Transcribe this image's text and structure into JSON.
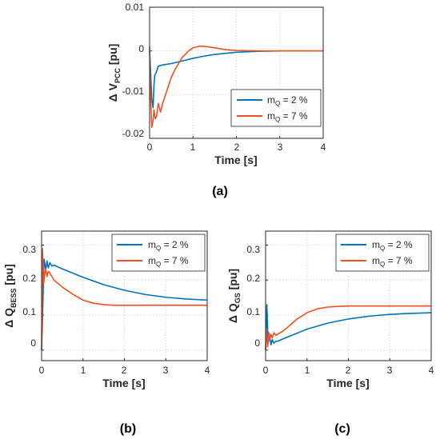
{
  "colors": {
    "blue": "#0072BD",
    "orange": "#F25022"
  },
  "charts": [
    {
      "caption": "(a)",
      "ylabel_main": "Δ V",
      "ylabel_sub": "PCC",
      "ylabel_unit": " [pu]",
      "xlabel": "Time [s]",
      "xticks": [
        "0",
        "1",
        "2",
        "3",
        "4"
      ],
      "yticks": [
        "0.01",
        "0",
        "-0.01",
        "-0.02"
      ],
      "legend": [
        {
          "prefix": "m",
          "sub": "Q",
          "suffix": " = 2 %"
        },
        {
          "prefix": "m",
          "sub": "Q",
          "suffix": " = 7 %"
        }
      ]
    },
    {
      "caption": "(b)",
      "ylabel_main": "Δ Q",
      "ylabel_sub": "BESS",
      "ylabel_unit": " [pu]",
      "xlabel": "Time [s]",
      "xticks": [
        "0",
        "1",
        "2",
        "3",
        "4"
      ],
      "yticks": [
        "0.3",
        "0.2",
        "0.1",
        "0"
      ],
      "legend": [
        {
          "prefix": "m",
          "sub": "Q",
          "suffix": " = 2 %"
        },
        {
          "prefix": "m",
          "sub": "Q",
          "suffix": " = 7 %"
        }
      ]
    },
    {
      "caption": "(c)",
      "ylabel_main": "Δ Q",
      "ylabel_sub": "GS",
      "ylabel_unit": " [pu]",
      "xlabel": "Time [s]",
      "xticks": [
        "0",
        "1",
        "2",
        "3",
        "4"
      ],
      "yticks": [
        "0.3",
        "0.2",
        "0.1",
        "0"
      ],
      "legend": [
        {
          "prefix": "m",
          "sub": "Q",
          "suffix": " = 2 %"
        },
        {
          "prefix": "m",
          "sub": "Q",
          "suffix": " = 7 %"
        }
      ]
    }
  ],
  "chart_data": [
    {
      "type": "line",
      "title": "(a)",
      "xlabel": "Time [s]",
      "ylabel": "Δ V_PCC [pu]",
      "xlim": [
        0,
        4
      ],
      "ylim": [
        -0.02,
        0.01
      ],
      "grid": true,
      "legend_position": "bottom-right",
      "series": [
        {
          "name": "m_Q = 2 %",
          "color": "#0072BD",
          "x": [
            0,
            0.02,
            0.05,
            0.08,
            0.1,
            0.12,
            0.15,
            0.2,
            0.3,
            0.5,
            0.75,
            1.0,
            1.25,
            1.5,
            2.0,
            2.5,
            3.0,
            4.0
          ],
          "y": [
            0,
            -0.004,
            -0.011,
            -0.013,
            -0.008,
            -0.0055,
            -0.005,
            -0.0035,
            -0.0032,
            -0.0029,
            -0.0023,
            -0.0017,
            -0.0012,
            -0.0008,
            -0.0003,
            -0.0001,
            0,
            0
          ]
        },
        {
          "name": "m_Q = 7 %",
          "color": "#F25022",
          "x": [
            0,
            0.02,
            0.05,
            0.08,
            0.1,
            0.13,
            0.16,
            0.2,
            0.25,
            0.3,
            0.4,
            0.5,
            0.6,
            0.75,
            0.9,
            1.0,
            1.15,
            1.3,
            1.5,
            1.75,
            2.0,
            2.5,
            3.0,
            4.0
          ],
          "y": [
            0.001,
            -0.01,
            -0.0175,
            -0.016,
            -0.0135,
            -0.0155,
            -0.015,
            -0.012,
            -0.014,
            -0.012,
            -0.009,
            -0.006,
            -0.004,
            -0.0015,
            0.0,
            0.0007,
            0.0011,
            0.001,
            0.0007,
            0.0003,
            0.0001,
            0,
            0,
            0
          ]
        }
      ]
    },
    {
      "type": "line",
      "title": "(b)",
      "xlabel": "Time [s]",
      "ylabel": "Δ Q_BESS [pu]",
      "xlim": [
        0,
        4
      ],
      "ylim": [
        -0.03,
        0.34
      ],
      "grid": true,
      "legend_position": "top-right",
      "series": [
        {
          "name": "m_Q = 2 %",
          "color": "#0072BD",
          "x": [
            0,
            0.03,
            0.06,
            0.1,
            0.13,
            0.16,
            0.2,
            0.25,
            0.3,
            0.5,
            0.75,
            1.0,
            1.5,
            2.0,
            2.5,
            3.0,
            3.5,
            4.0
          ],
          "y": [
            0,
            0.13,
            0.26,
            0.23,
            0.255,
            0.235,
            0.25,
            0.24,
            0.243,
            0.232,
            0.22,
            0.208,
            0.187,
            0.171,
            0.159,
            0.151,
            0.146,
            0.143
          ]
        },
        {
          "name": "m_Q = 7 %",
          "color": "#F25022",
          "x": [
            0,
            0.02,
            0.05,
            0.08,
            0.1,
            0.13,
            0.16,
            0.2,
            0.25,
            0.3,
            0.4,
            0.5,
            0.75,
            1.0,
            1.25,
            1.5,
            1.75,
            2.0,
            2.5,
            3.0,
            4.0
          ],
          "y": [
            0,
            0.29,
            0.19,
            0.22,
            0.23,
            0.21,
            0.225,
            0.22,
            0.21,
            0.2,
            0.19,
            0.18,
            0.16,
            0.143,
            0.134,
            0.13,
            0.128,
            0.128,
            0.128,
            0.128,
            0.128
          ]
        }
      ]
    },
    {
      "type": "line",
      "title": "(c)",
      "xlabel": "Time [s]",
      "ylabel": "Δ Q_GS [pu]",
      "xlim": [
        0,
        4
      ],
      "ylim": [
        -0.03,
        0.34
      ],
      "grid": true,
      "legend_position": "top-right",
      "series": [
        {
          "name": "m_Q = 2 %",
          "color": "#0072BD",
          "x": [
            0,
            0.03,
            0.06,
            0.1,
            0.13,
            0.16,
            0.2,
            0.25,
            0.3,
            0.5,
            0.75,
            1.0,
            1.5,
            2.0,
            2.5,
            3.0,
            3.5,
            4.0
          ],
          "y": [
            0,
            0.13,
            0.02,
            0.04,
            0.015,
            0.03,
            0.02,
            0.025,
            0.026,
            0.036,
            0.048,
            0.06,
            0.077,
            0.089,
            0.097,
            0.102,
            0.105,
            0.107
          ]
        },
        {
          "name": "m_Q = 7 %",
          "color": "#F25022",
          "x": [
            0,
            0.02,
            0.05,
            0.08,
            0.1,
            0.13,
            0.16,
            0.2,
            0.25,
            0.3,
            0.4,
            0.5,
            0.75,
            1.0,
            1.25,
            1.5,
            1.75,
            2.0,
            2.5,
            3.0,
            4.0
          ],
          "y": [
            0,
            0.06,
            0.01,
            0.05,
            0.03,
            0.045,
            0.035,
            0.05,
            0.042,
            0.046,
            0.053,
            0.062,
            0.088,
            0.107,
            0.118,
            0.123,
            0.125,
            0.126,
            0.126,
            0.126,
            0.126
          ]
        }
      ]
    }
  ]
}
